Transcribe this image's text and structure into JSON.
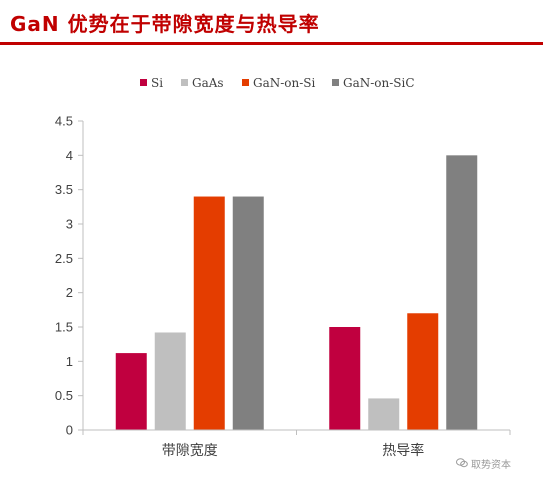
{
  "title": "GaN 优势在于带隙宽度与热导率",
  "watermark": {
    "text": "取势资本",
    "icon": "wechat-icon"
  },
  "colors": {
    "title": "#c00000",
    "axis": "#bfbfbf",
    "text": "#404040"
  },
  "chart_data": {
    "type": "bar",
    "categories": [
      "带隙宽度",
      "热导率"
    ],
    "series": [
      {
        "name": "Si",
        "values": [
          1.12,
          1.5
        ],
        "color": "#c0003f"
      },
      {
        "name": "GaAs",
        "values": [
          1.42,
          0.46
        ],
        "color": "#bfbfbf"
      },
      {
        "name": "GaN-on-Si",
        "values": [
          3.4,
          1.7
        ],
        "color": "#e43d00"
      },
      {
        "name": "GaN-on-SiC",
        "values": [
          3.4,
          4.0
        ],
        "color": "#808080"
      }
    ],
    "ylim": [
      0,
      4.5
    ],
    "yticks": [
      "0",
      "0.5",
      "1",
      "1.5",
      "2",
      "2.5",
      "3",
      "3.5",
      "4",
      "4.5"
    ],
    "legend_position": "top",
    "grid": false
  }
}
